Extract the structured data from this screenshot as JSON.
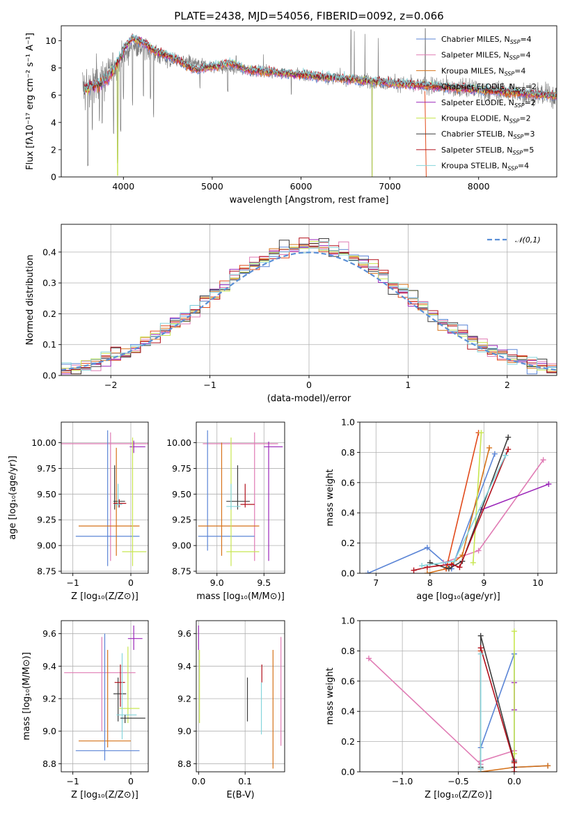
{
  "colors": {
    "chabrier_miles": "#5b85d6",
    "salpeter_miles": "#e07bb4",
    "kroupa_miles": "#d67219",
    "chabrier_elodie": "#e14a1b",
    "salpeter_elodie": "#9b27b9",
    "kroupa_elodie": "#c8e650",
    "chabrier_stelib": "#3d3d3d",
    "salpeter_stelib": "#b2101c",
    "kroupa_stelib": "#85d5dc",
    "data": "#808080",
    "normal": "#5b8fd6"
  },
  "chart_data": [
    {
      "id": "spectrum",
      "type": "line",
      "title": "PLATE=2438, MJD=54056, FIBERID=0092, z=0.066",
      "xlabel": "wavelength [Angstrom, rest frame]",
      "ylabel": "Flux [fλ10⁻¹⁷ erg cm⁻² s⁻¹ A⁻¹]",
      "xlim": [
        3300,
        8880
      ],
      "ylim": [
        0,
        11.1
      ],
      "xticks": [
        4000,
        5000,
        6000,
        7000,
        8000
      ],
      "yticks": [
        0,
        2,
        4,
        6,
        8,
        10
      ],
      "grid": false,
      "legend_position": "upper right",
      "legend": [
        {
          "base": "Chabrier MILES, N",
          "sub": "SSP",
          "tail": "=4",
          "color_key": "chabrier_miles"
        },
        {
          "base": "Salpeter MILES, N",
          "sub": "SSP",
          "tail": "=4",
          "color_key": "salpeter_miles"
        },
        {
          "base": "Kroupa MILES, N",
          "sub": "SSP",
          "tail": "=4",
          "color_key": "kroupa_miles"
        },
        {
          "base": "Chabrier ELODIE, N",
          "sub": "SSP",
          "tail": "=2",
          "color_key": "chabrier_elodie"
        },
        {
          "base": "Salpeter ELODIE, N",
          "sub": "SSP",
          "tail": "=2",
          "color_key": "salpeter_elodie"
        },
        {
          "base": "Kroupa ELODIE, N",
          "sub": "SSP",
          "tail": "=2",
          "color_key": "kroupa_elodie"
        },
        {
          "base": "Chabrier STELIB, N",
          "sub": "SSP",
          "tail": "=3",
          "color_key": "chabrier_stelib"
        },
        {
          "base": "Salpeter STELIB, N",
          "sub": "SSP",
          "tail": "=5",
          "color_key": "salpeter_stelib"
        },
        {
          "base": "Kroupa STELIB, N",
          "sub": "SSP",
          "tail": "=4",
          "color_key": "kroupa_stelib"
        }
      ],
      "continuum_knots": [
        [
          3540,
          6.5
        ],
        [
          3800,
          7.3
        ],
        [
          4000,
          8.7
        ],
        [
          4100,
          9.7
        ],
        [
          4300,
          9.3
        ],
        [
          4500,
          8.6
        ],
        [
          5000,
          8.1
        ],
        [
          5500,
          7.8
        ],
        [
          6000,
          7.5
        ],
        [
          6500,
          7.2
        ],
        [
          7000,
          6.9
        ],
        [
          7500,
          6.65
        ],
        [
          8000,
          6.4
        ],
        [
          8500,
          6.15
        ],
        [
          8880,
          5.95
        ]
      ],
      "noise_sd_knots": [
        [
          3540,
          1.8
        ],
        [
          3700,
          1.6
        ],
        [
          4000,
          0.9
        ],
        [
          4500,
          0.6
        ],
        [
          5000,
          0.45
        ],
        [
          5500,
          0.4
        ],
        [
          6000,
          0.4
        ],
        [
          6500,
          0.45
        ],
        [
          7000,
          0.55
        ],
        [
          7500,
          0.65
        ],
        [
          8000,
          0.75
        ],
        [
          8880,
          0.85
        ]
      ],
      "model_bumps": [
        [
          4000,
          0.6
        ],
        [
          4200,
          0.4
        ],
        [
          4500,
          0.3
        ],
        [
          4800,
          -0.4
        ],
        [
          5200,
          0.4
        ]
      ],
      "dips": [
        [
          3600,
          0.6
        ],
        [
          3650,
          3.2
        ],
        [
          3730,
          4.0
        ],
        [
          3760,
          3.6
        ],
        [
          3890,
          3.0
        ],
        [
          3934,
          1.0
        ],
        [
          3969,
          3.3
        ],
        [
          4000,
          5.5
        ],
        [
          4102,
          5.2
        ],
        [
          4226,
          5.8
        ],
        [
          4305,
          5.7
        ],
        [
          4340,
          4.3
        ],
        [
          4861,
          6.5
        ],
        [
          5175,
          6.2
        ],
        [
          5890,
          6.0
        ],
        [
          6563,
          6.1
        ],
        [
          6800,
          0.0
        ],
        [
          7400,
          0.0
        ]
      ],
      "spikes": [
        [
          6563,
          10.8
        ],
        [
          6600,
          10.7
        ],
        [
          6720,
          10.5
        ],
        [
          6870,
          10.2
        ],
        [
          7400,
          10.9
        ],
        [
          5270,
          8.9
        ],
        [
          5577,
          9.0
        ]
      ]
    },
    {
      "id": "residuals",
      "type": "histogram",
      "xlabel": "(data-model)/error",
      "ylabel": "Normed distribution",
      "xlim": [
        -2.5,
        2.5
      ],
      "ylim": [
        0,
        0.49
      ],
      "xticks": [
        -2,
        -1,
        0,
        1,
        2
      ],
      "yticks": [
        0.0,
        0.1,
        0.2,
        0.3,
        0.4
      ],
      "grid": true,
      "bin_width": 0.1,
      "reference": {
        "label": "𝒩(0,1)",
        "style": "dashed"
      },
      "legend_position": "upper right"
    },
    {
      "id": "age_vs_Z",
      "type": "errorbar",
      "xlabel": "Z [log₁₀(Z/Z⊙)]",
      "ylabel": "age [log₁₀(age/yr)]",
      "xlim": [
        -1.2,
        0.3
      ],
      "ylim": [
        8.73,
        10.2
      ],
      "xticks": [
        -1,
        0
      ],
      "yticks": [
        8.75,
        9.0,
        9.25,
        9.5,
        9.75,
        10.0
      ],
      "grid": true,
      "points": [
        {
          "c": "salpeter_miles",
          "x": -0.35,
          "xlo": -1.2,
          "xhi": 0.3,
          "y": 9.99,
          "ylo": 8.85,
          "yhi": 10.1
        },
        {
          "c": "salpeter_elodie",
          "x": 0.05,
          "xlo": -0.02,
          "xhi": 0.25,
          "y": 9.96,
          "ylo": 9.9,
          "yhi": 10.02
        },
        {
          "c": "chabrier_miles",
          "x": -0.4,
          "xlo": -0.95,
          "xhi": 0.15,
          "y": 9.09,
          "ylo": 8.8,
          "yhi": 10.12
        },
        {
          "c": "kroupa_miles",
          "x": -0.25,
          "xlo": -0.9,
          "xhi": 0.15,
          "y": 9.19,
          "ylo": 8.9,
          "yhi": 9.95
        },
        {
          "c": "kroupa_elodie",
          "x": 0.03,
          "xlo": -0.15,
          "xhi": 0.27,
          "y": 8.94,
          "ylo": 8.8,
          "yhi": 10.05
        },
        {
          "c": "chabrier_stelib",
          "x": -0.28,
          "xlo": -0.3,
          "xhi": -0.1,
          "y": 9.43,
          "ylo": 9.35,
          "yhi": 9.78
        },
        {
          "c": "salpeter_stelib",
          "x": -0.2,
          "xlo": -0.3,
          "xhi": -0.08,
          "y": 9.41,
          "ylo": 9.37,
          "yhi": 9.45
        },
        {
          "c": "kroupa_stelib",
          "x": -0.22,
          "xlo": -0.28,
          "xhi": -0.15,
          "y": 9.4,
          "ylo": 9.37,
          "yhi": 9.6
        }
      ]
    },
    {
      "id": "age_vs_mass",
      "type": "errorbar",
      "xlabel": "mass [log₁₀(M/M⊙)]",
      "ylabel": "",
      "xlim": [
        8.78,
        9.72
      ],
      "ylim": [
        8.73,
        10.2
      ],
      "xticks": [
        9.0,
        9.5
      ],
      "yticks": [
        8.75,
        9.0,
        9.25,
        9.5,
        9.75,
        10.0
      ],
      "grid": true,
      "points": [
        {
          "c": "salpeter_miles",
          "x": 9.4,
          "xlo": 8.85,
          "xhi": 9.65,
          "y": 9.99,
          "ylo": 8.85,
          "yhi": 10.1
        },
        {
          "c": "salpeter_elodie",
          "x": 9.55,
          "xlo": 9.5,
          "xhi": 9.7,
          "y": 9.96,
          "ylo": 8.85,
          "yhi": 10.01
        },
        {
          "c": "chabrier_miles",
          "x": 8.9,
          "xlo": 8.8,
          "xhi": 9.4,
          "y": 9.09,
          "ylo": 8.95,
          "yhi": 10.12
        },
        {
          "c": "kroupa_miles",
          "x": 9.05,
          "xlo": 8.8,
          "xhi": 9.45,
          "y": 9.19,
          "ylo": 8.9,
          "yhi": 10.0
        },
        {
          "c": "kroupa_elodie",
          "x": 9.15,
          "xlo": 9.1,
          "xhi": 9.45,
          "y": 8.94,
          "ylo": 8.8,
          "yhi": 10.05
        },
        {
          "c": "chabrier_stelib",
          "x": 9.22,
          "xlo": 9.1,
          "xhi": 9.35,
          "y": 9.43,
          "ylo": 9.35,
          "yhi": 9.78
        },
        {
          "c": "salpeter_stelib",
          "x": 9.3,
          "xlo": 9.25,
          "xhi": 9.4,
          "y": 9.4,
          "ylo": 9.37,
          "yhi": 9.6
        },
        {
          "c": "kroupa_stelib",
          "x": 9.15,
          "xlo": 9.1,
          "xhi": 9.25,
          "y": 9.38,
          "ylo": 9.35,
          "yhi": 9.6
        }
      ]
    },
    {
      "id": "mw_vs_age",
      "type": "line",
      "xlabel": "age [log₁₀(age/yr)]",
      "ylabel": "mass weight",
      "xlim": [
        6.7,
        10.35
      ],
      "ylim": [
        0,
        1.0
      ],
      "xticks": [
        7,
        8,
        9,
        10
      ],
      "yticks": [
        0.0,
        0.2,
        0.4,
        0.6,
        0.8,
        1.0
      ],
      "grid": true,
      "series": [
        {
          "c": "chabrier_miles",
          "x": [
            6.85,
            7.95,
            8.4,
            9.2
          ],
          "y": [
            0.0,
            0.17,
            0.03,
            0.79
          ]
        },
        {
          "c": "salpeter_miles",
          "x": [
            8.25,
            8.9,
            10.1
          ],
          "y": [
            0.07,
            0.15,
            0.75
          ]
        },
        {
          "c": "kroupa_miles",
          "x": [
            7.95,
            8.3,
            8.6,
            9.1
          ],
          "y": [
            0.0,
            0.03,
            0.12,
            0.83
          ]
        },
        {
          "c": "chabrier_elodie",
          "x": [
            8.3,
            8.9
          ],
          "y": [
            0.03,
            0.93
          ]
        },
        {
          "c": "salpeter_elodie",
          "x": [
            8.95,
            10.2
          ],
          "y": [
            0.42,
            0.59
          ]
        },
        {
          "c": "kroupa_elodie",
          "x": [
            8.8,
            8.95
          ],
          "y": [
            0.07,
            0.93
          ]
        },
        {
          "c": "chabrier_stelib",
          "x": [
            8.0,
            8.35,
            8.6,
            9.45
          ],
          "y": [
            0.07,
            0.03,
            0.08,
            0.9
          ]
        },
        {
          "c": "salpeter_stelib",
          "x": [
            7.7,
            7.95,
            8.4,
            8.55,
            9.45
          ],
          "y": [
            0.02,
            0.04,
            0.06,
            0.04,
            0.82
          ]
        },
        {
          "c": "kroupa_stelib",
          "x": [
            7.85,
            8.45,
            9.4
          ],
          "y": [
            0.05,
            0.08,
            0.78
          ]
        }
      ]
    },
    {
      "id": "mass_vs_Z",
      "type": "errorbar",
      "xlabel": "Z [log₁₀(Z/Z⊙)]",
      "ylabel": "mass [log₁₀(M/M⊙)]",
      "xlim": [
        -1.2,
        0.3
      ],
      "ylim": [
        8.75,
        9.68
      ],
      "xticks": [
        -1,
        0
      ],
      "yticks": [
        8.8,
        9.0,
        9.2,
        9.4,
        9.6
      ],
      "grid": true,
      "points": [
        {
          "c": "salpeter_elodie",
          "x": 0.05,
          "xlo": -0.05,
          "xhi": 0.2,
          "y": 9.57,
          "ylo": 9.5,
          "yhi": 9.65
        },
        {
          "c": "salpeter_miles",
          "x": -0.5,
          "xlo": -1.15,
          "xhi": 0.08,
          "y": 9.36,
          "ylo": 9.0,
          "yhi": 9.58
        },
        {
          "c": "chabrier_stelib",
          "x": -0.22,
          "xlo": -0.3,
          "xhi": -0.08,
          "y": 9.23,
          "ylo": 9.06,
          "yhi": 9.33
        },
        {
          "c": "salpeter_stelib",
          "x": -0.18,
          "xlo": -0.28,
          "xhi": -0.1,
          "y": 9.3,
          "ylo": 9.15,
          "yhi": 9.41
        },
        {
          "c": "kroupa_elodie",
          "x": -0.05,
          "xlo": -0.2,
          "xhi": 0.15,
          "y": 9.14,
          "ylo": 9.05,
          "yhi": 9.52
        },
        {
          "c": "kroupa_stelib",
          "x": -0.15,
          "xlo": -0.25,
          "xhi": 0.1,
          "y": 9.1,
          "ylo": 8.95,
          "yhi": 9.48
        },
        {
          "c": "chabrier_stelib",
          "x": -0.1,
          "xlo": -0.18,
          "xhi": 0.25,
          "y": 9.08,
          "ylo": 9.05,
          "yhi": 9.1
        },
        {
          "c": "kroupa_miles",
          "x": -0.4,
          "xlo": -0.9,
          "xhi": 0.0,
          "y": 8.94,
          "ylo": 8.9,
          "yhi": 9.5
        },
        {
          "c": "chabrier_miles",
          "x": -0.45,
          "xlo": -0.95,
          "xhi": 0.15,
          "y": 8.88,
          "ylo": 8.82,
          "yhi": 9.6
        }
      ]
    },
    {
      "id": "mass_vs_ebv",
      "type": "errorbar",
      "xlabel": "E(B-V)",
      "ylabel": "",
      "xlim": [
        -0.005,
        0.185
      ],
      "ylim": [
        8.75,
        9.68
      ],
      "xticks": [
        0.0,
        0.1
      ],
      "yticks": [
        8.8,
        9.0,
        9.2,
        9.4,
        9.6
      ],
      "grid": true,
      "points": [
        {
          "c": "salpeter_elodie",
          "x": 0.0,
          "y": 9.57,
          "ylo": 9.5,
          "yhi": 9.65
        },
        {
          "c": "kroupa_elodie",
          "x": 0.002,
          "y": 9.2,
          "ylo": 9.05,
          "yhi": 9.5
        },
        {
          "c": "chabrier_stelib",
          "x": 0.105,
          "y": 9.2,
          "ylo": 9.06,
          "yhi": 9.33
        },
        {
          "c": "kroupa_stelib",
          "x": 0.135,
          "y": 9.1,
          "ylo": 8.98,
          "yhi": 9.3
        },
        {
          "c": "salpeter_stelib",
          "x": 0.136,
          "y": 9.35,
          "ylo": 9.3,
          "yhi": 9.41
        },
        {
          "c": "kroupa_miles",
          "x": 0.16,
          "y": 9.0,
          "ylo": 8.77,
          "yhi": 9.5
        },
        {
          "c": "salpeter_miles",
          "x": 0.177,
          "y": 9.3,
          "ylo": 8.91,
          "yhi": 9.58
        }
      ]
    },
    {
      "id": "mw_vs_Z",
      "type": "line",
      "xlabel": "Z [log₁₀(Z/Z⊙)]",
      "ylabel": "mass weight",
      "xlim": [
        -1.38,
        0.38
      ],
      "ylim": [
        0,
        1.0
      ],
      "xticks": [
        -1.0,
        -0.5,
        0.0
      ],
      "yticks": [
        0.0,
        0.2,
        0.4,
        0.6,
        0.8,
        1.0
      ],
      "grid": true,
      "series": [
        {
          "c": "salpeter_miles",
          "x": [
            -1.3,
            -0.3,
            -0.3,
            0.0,
            0.0
          ],
          "y": [
            0.75,
            0.05,
            0.07,
            0.14,
            0.08
          ]
        },
        {
          "c": "chabrier_miles",
          "x": [
            -0.3,
            -0.3,
            0.0,
            0.0,
            0.3
          ],
          "y": [
            0.02,
            0.16,
            0.78,
            0.03,
            0.04
          ]
        },
        {
          "c": "kroupa_miles",
          "x": [
            -0.3,
            0.0,
            0.3
          ],
          "y": [
            0.0,
            0.03,
            0.04
          ]
        },
        {
          "c": "chabrier_elodie",
          "x": [
            -0.3,
            -0.3
          ],
          "y": [
            0.02,
            0.8
          ]
        },
        {
          "c": "salpeter_elodie",
          "x": [
            0.0,
            0.0
          ],
          "y": [
            0.41,
            0.59
          ]
        },
        {
          "c": "kroupa_elodie",
          "x": [
            0.0,
            0.0,
            0.0
          ],
          "y": [
            0.06,
            0.93,
            0.12
          ]
        },
        {
          "c": "chabrier_stelib",
          "x": [
            -0.3,
            -0.3,
            0.0,
            0.0
          ],
          "y": [
            0.03,
            0.9,
            0.07,
            0.03
          ]
        },
        {
          "c": "salpeter_stelib",
          "x": [
            -0.3,
            -0.3,
            0.0,
            0.0
          ],
          "y": [
            0.02,
            0.82,
            0.06,
            0.0
          ]
        },
        {
          "c": "kroupa_stelib",
          "x": [
            -0.3,
            -0.3
          ],
          "y": [
            0.02,
            0.78
          ]
        }
      ]
    }
  ]
}
